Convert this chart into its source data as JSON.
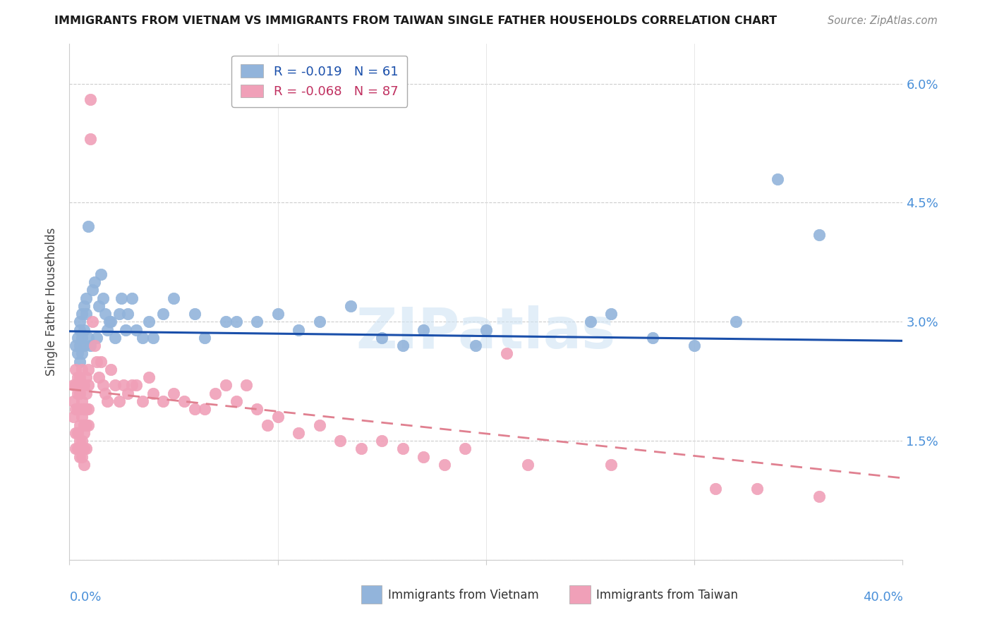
{
  "title": "IMMIGRANTS FROM VIETNAM VS IMMIGRANTS FROM TAIWAN SINGLE FATHER HOUSEHOLDS CORRELATION CHART",
  "source": "Source: ZipAtlas.com",
  "ylabel": "Single Father Households",
  "yticks": [
    0.0,
    0.015,
    0.03,
    0.045,
    0.06
  ],
  "xlim": [
    0.0,
    0.4
  ],
  "ylim": [
    0.0,
    0.065
  ],
  "legend_vietnam": "R = -0.019   N = 61",
  "legend_taiwan": "R = -0.068   N = 87",
  "color_vietnam": "#92b4db",
  "color_taiwan": "#f0a0b8",
  "color_vietnam_line": "#1a4faa",
  "color_taiwan_line": "#e08090",
  "watermark": "ZIPatlas",
  "vietnam_R": -0.019,
  "taiwan_R": -0.068,
  "vietnam_slope": -0.003,
  "vietnam_intercept": 0.0288,
  "taiwan_slope": -0.028,
  "taiwan_intercept": 0.0215,
  "vietnam_points": [
    [
      0.003,
      0.027
    ],
    [
      0.004,
      0.026
    ],
    [
      0.004,
      0.028
    ],
    [
      0.005,
      0.025
    ],
    [
      0.005,
      0.029
    ],
    [
      0.005,
      0.027
    ],
    [
      0.005,
      0.03
    ],
    [
      0.006,
      0.026
    ],
    [
      0.006,
      0.028
    ],
    [
      0.006,
      0.031
    ],
    [
      0.007,
      0.032
    ],
    [
      0.007,
      0.027
    ],
    [
      0.007,
      0.029
    ],
    [
      0.008,
      0.031
    ],
    [
      0.008,
      0.033
    ],
    [
      0.009,
      0.028
    ],
    [
      0.009,
      0.042
    ],
    [
      0.01,
      0.027
    ],
    [
      0.011,
      0.034
    ],
    [
      0.012,
      0.035
    ],
    [
      0.013,
      0.028
    ],
    [
      0.014,
      0.032
    ],
    [
      0.015,
      0.036
    ],
    [
      0.016,
      0.033
    ],
    [
      0.017,
      0.031
    ],
    [
      0.018,
      0.029
    ],
    [
      0.019,
      0.03
    ],
    [
      0.02,
      0.03
    ],
    [
      0.022,
      0.028
    ],
    [
      0.024,
      0.031
    ],
    [
      0.025,
      0.033
    ],
    [
      0.027,
      0.029
    ],
    [
      0.028,
      0.031
    ],
    [
      0.03,
      0.033
    ],
    [
      0.032,
      0.029
    ],
    [
      0.035,
      0.028
    ],
    [
      0.038,
      0.03
    ],
    [
      0.04,
      0.028
    ],
    [
      0.045,
      0.031
    ],
    [
      0.05,
      0.033
    ],
    [
      0.06,
      0.031
    ],
    [
      0.065,
      0.028
    ],
    [
      0.075,
      0.03
    ],
    [
      0.08,
      0.03
    ],
    [
      0.09,
      0.03
    ],
    [
      0.1,
      0.031
    ],
    [
      0.11,
      0.029
    ],
    [
      0.12,
      0.03
    ],
    [
      0.135,
      0.032
    ],
    [
      0.15,
      0.028
    ],
    [
      0.16,
      0.027
    ],
    [
      0.17,
      0.029
    ],
    [
      0.195,
      0.027
    ],
    [
      0.2,
      0.029
    ],
    [
      0.25,
      0.03
    ],
    [
      0.26,
      0.031
    ],
    [
      0.28,
      0.028
    ],
    [
      0.3,
      0.027
    ],
    [
      0.32,
      0.03
    ],
    [
      0.34,
      0.048
    ],
    [
      0.36,
      0.041
    ]
  ],
  "taiwan_points": [
    [
      0.002,
      0.022
    ],
    [
      0.002,
      0.02
    ],
    [
      0.002,
      0.018
    ],
    [
      0.003,
      0.024
    ],
    [
      0.003,
      0.022
    ],
    [
      0.003,
      0.019
    ],
    [
      0.003,
      0.016
    ],
    [
      0.003,
      0.014
    ],
    [
      0.004,
      0.023
    ],
    [
      0.004,
      0.021
    ],
    [
      0.004,
      0.019
    ],
    [
      0.004,
      0.016
    ],
    [
      0.004,
      0.014
    ],
    [
      0.005,
      0.023
    ],
    [
      0.005,
      0.021
    ],
    [
      0.005,
      0.019
    ],
    [
      0.005,
      0.017
    ],
    [
      0.005,
      0.015
    ],
    [
      0.005,
      0.013
    ],
    [
      0.006,
      0.024
    ],
    [
      0.006,
      0.022
    ],
    [
      0.006,
      0.02
    ],
    [
      0.006,
      0.018
    ],
    [
      0.006,
      0.015
    ],
    [
      0.006,
      0.013
    ],
    [
      0.007,
      0.022
    ],
    [
      0.007,
      0.019
    ],
    [
      0.007,
      0.017
    ],
    [
      0.007,
      0.016
    ],
    [
      0.007,
      0.014
    ],
    [
      0.007,
      0.012
    ],
    [
      0.008,
      0.023
    ],
    [
      0.008,
      0.021
    ],
    [
      0.008,
      0.019
    ],
    [
      0.008,
      0.017
    ],
    [
      0.008,
      0.014
    ],
    [
      0.009,
      0.024
    ],
    [
      0.009,
      0.022
    ],
    [
      0.009,
      0.019
    ],
    [
      0.009,
      0.017
    ],
    [
      0.01,
      0.058
    ],
    [
      0.01,
      0.053
    ],
    [
      0.011,
      0.03
    ],
    [
      0.012,
      0.027
    ],
    [
      0.013,
      0.025
    ],
    [
      0.014,
      0.023
    ],
    [
      0.015,
      0.025
    ],
    [
      0.016,
      0.022
    ],
    [
      0.017,
      0.021
    ],
    [
      0.018,
      0.02
    ],
    [
      0.02,
      0.024
    ],
    [
      0.022,
      0.022
    ],
    [
      0.024,
      0.02
    ],
    [
      0.026,
      0.022
    ],
    [
      0.028,
      0.021
    ],
    [
      0.03,
      0.022
    ],
    [
      0.032,
      0.022
    ],
    [
      0.035,
      0.02
    ],
    [
      0.038,
      0.023
    ],
    [
      0.04,
      0.021
    ],
    [
      0.045,
      0.02
    ],
    [
      0.05,
      0.021
    ],
    [
      0.055,
      0.02
    ],
    [
      0.06,
      0.019
    ],
    [
      0.065,
      0.019
    ],
    [
      0.07,
      0.021
    ],
    [
      0.075,
      0.022
    ],
    [
      0.08,
      0.02
    ],
    [
      0.085,
      0.022
    ],
    [
      0.09,
      0.019
    ],
    [
      0.095,
      0.017
    ],
    [
      0.1,
      0.018
    ],
    [
      0.11,
      0.016
    ],
    [
      0.12,
      0.017
    ],
    [
      0.13,
      0.015
    ],
    [
      0.14,
      0.014
    ],
    [
      0.15,
      0.015
    ],
    [
      0.16,
      0.014
    ],
    [
      0.17,
      0.013
    ],
    [
      0.18,
      0.012
    ],
    [
      0.19,
      0.014
    ],
    [
      0.21,
      0.026
    ],
    [
      0.22,
      0.012
    ],
    [
      0.26,
      0.012
    ],
    [
      0.31,
      0.009
    ],
    [
      0.33,
      0.009
    ],
    [
      0.36,
      0.008
    ]
  ]
}
